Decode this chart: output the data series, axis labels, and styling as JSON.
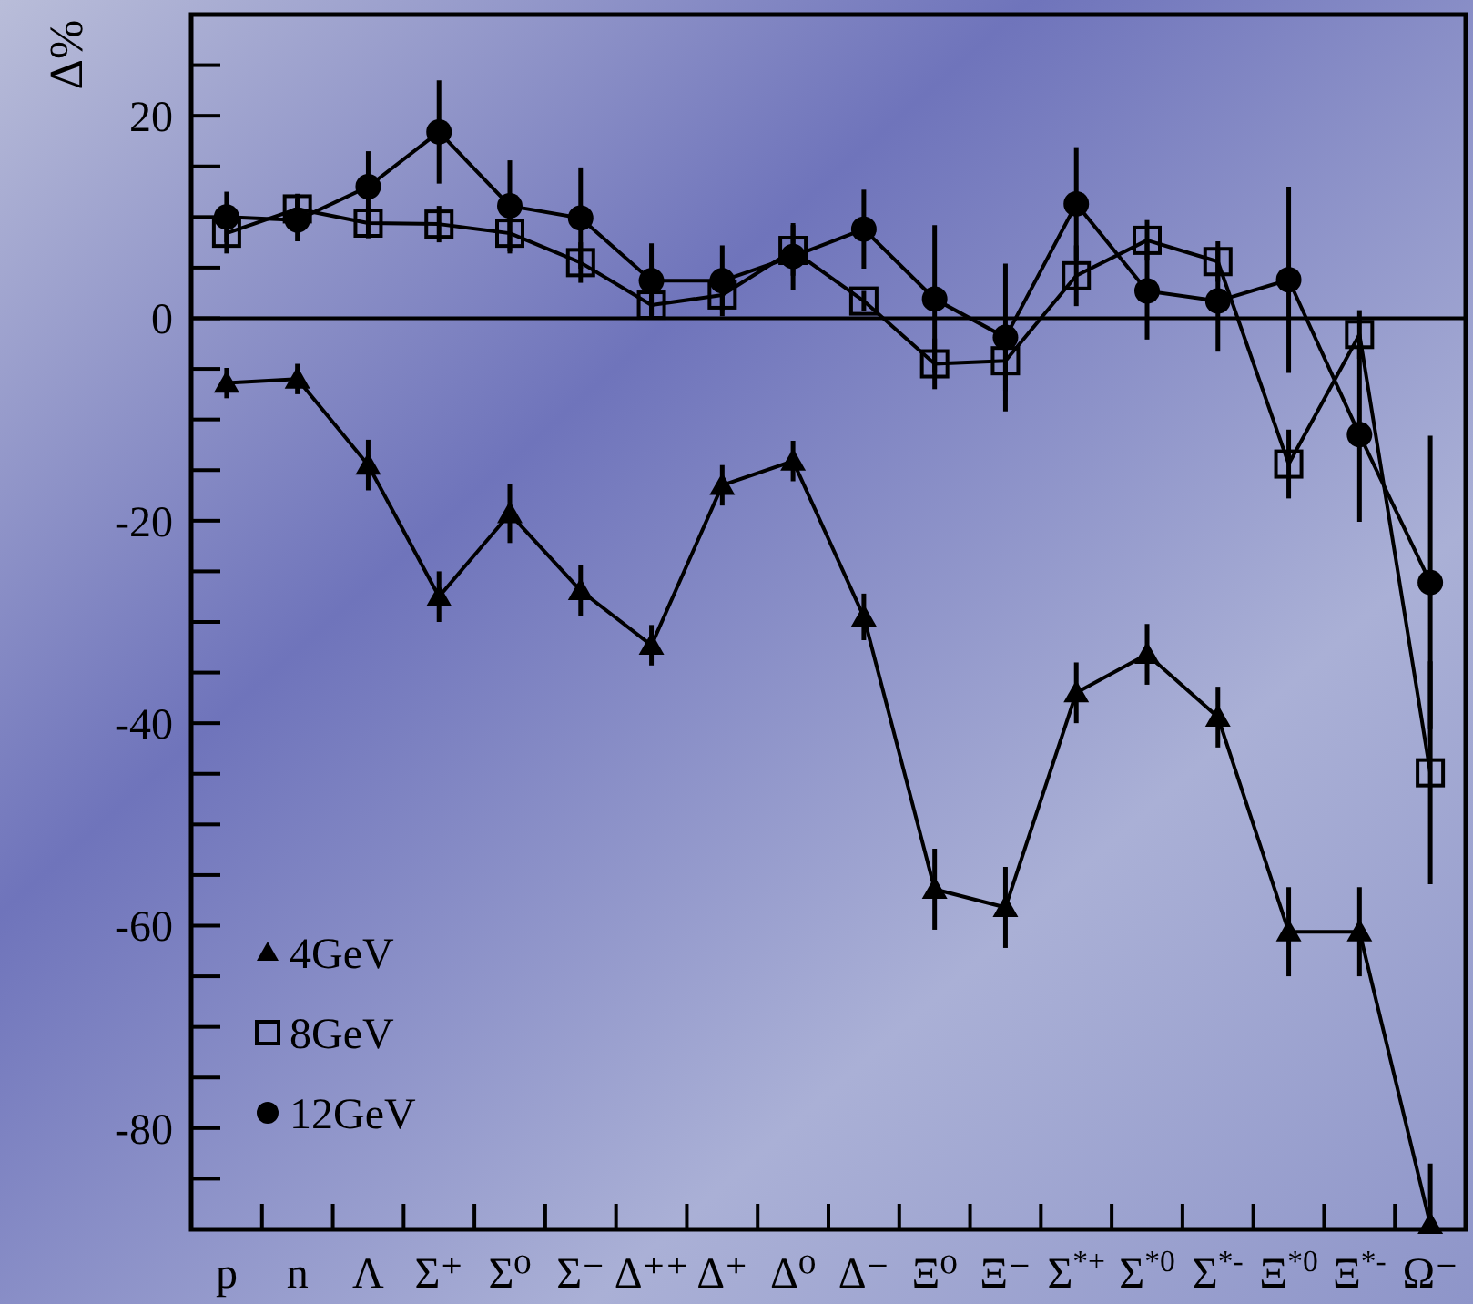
{
  "chart_data": {
    "type": "line",
    "ylabel": "Δ%",
    "categories": [
      "p",
      "n",
      "Λ",
      "Σ⁺",
      "Σ⁰",
      "Σ⁻",
      "Δ⁺⁺",
      "Δ⁺",
      "Δ⁰",
      "Δ⁻",
      "Ξ⁰",
      "Ξ⁻",
      "Σ$^{*+}$",
      "Σ$^{*0}$",
      "Σ$^{*-}$",
      "Ξ$^{*0}$",
      "Ξ$^{*-}$",
      "Ω⁻"
    ],
    "ylim": [
      -90,
      30
    ],
    "yticks": [
      {
        "value": -85,
        "label": null
      },
      -80,
      {
        "value": -75,
        "label": null
      },
      {
        "value": -70,
        "label": null
      },
      {
        "value": -65,
        "label": null
      },
      -60,
      {
        "value": -55,
        "label": null
      },
      {
        "value": -50,
        "label": null
      },
      {
        "value": -45,
        "label": null
      },
      -40,
      {
        "value": -35,
        "label": null
      },
      {
        "value": -30,
        "label": null
      },
      {
        "value": -25,
        "label": null
      },
      -20,
      {
        "value": -15,
        "label": null
      },
      {
        "value": -10,
        "label": null
      },
      {
        "value": -5,
        "label": null
      },
      0,
      {
        "value": 5,
        "label": null
      },
      {
        "value": 10,
        "label": null
      },
      {
        "value": 15,
        "label": null
      },
      20,
      {
        "value": 25,
        "label": null
      }
    ],
    "grid": false,
    "legend": "bottom left",
    "line_style": "solid",
    "ref_lines": [
      {
        "axis": "y",
        "value": 0,
        "color": "#000000"
      }
    ],
    "series": [
      {
        "name": "4GeV",
        "color": "#000000",
        "marker": "triangle",
        "values": [
          -6.4,
          -6.0,
          -14.5,
          -27.5,
          -19.3,
          -26.9,
          -32.3,
          -16.5,
          -14.1,
          -29.5,
          -56.4,
          -58.2,
          -37.0,
          -33.2,
          -39.4,
          -60.6,
          -60.6,
          -89.5
        ],
        "errors": [
          1.5,
          1.5,
          2.5,
          2.5,
          2.9,
          2.5,
          2,
          2,
          2,
          2.3,
          4,
          4,
          3,
          3,
          3,
          4.4,
          4.4,
          [
            -90,
            -83.5
          ]
        ]
      },
      {
        "name": "8GeV",
        "color": "#000000",
        "marker": "square",
        "values": [
          8.4,
          10.8,
          9.4,
          9.3,
          8.4,
          5.5,
          1.3,
          2.3,
          6.7,
          1.7,
          -4.5,
          -4.2,
          4.2,
          7.7,
          5.6,
          -14.4,
          -1.6,
          -44.9
        ],
        "errors": [
          2,
          1.5,
          1.5,
          1.8,
          2,
          2,
          1,
          1.5,
          2.5,
          1,
          2.5,
          3,
          3,
          2,
          2,
          3.4,
          2.4,
          11
        ]
      },
      {
        "name": "12GeV",
        "color": "#000000",
        "marker": "circle",
        "values": [
          10.0,
          9.7,
          13.0,
          18.4,
          11.1,
          9.9,
          3.7,
          3.7,
          6.1,
          8.8,
          1.9,
          -1.9,
          11.3,
          2.7,
          1.7,
          3.8,
          -11.5,
          -26.1
        ],
        "errors": [
          2.5,
          2.1,
          3.5,
          5.1,
          4.5,
          5.0,
          3.7,
          3.5,
          3.3,
          3.9,
          7.3,
          7.3,
          5.6,
          4.8,
          5,
          9.2,
          8.6,
          14.5
        ]
      }
    ]
  }
}
